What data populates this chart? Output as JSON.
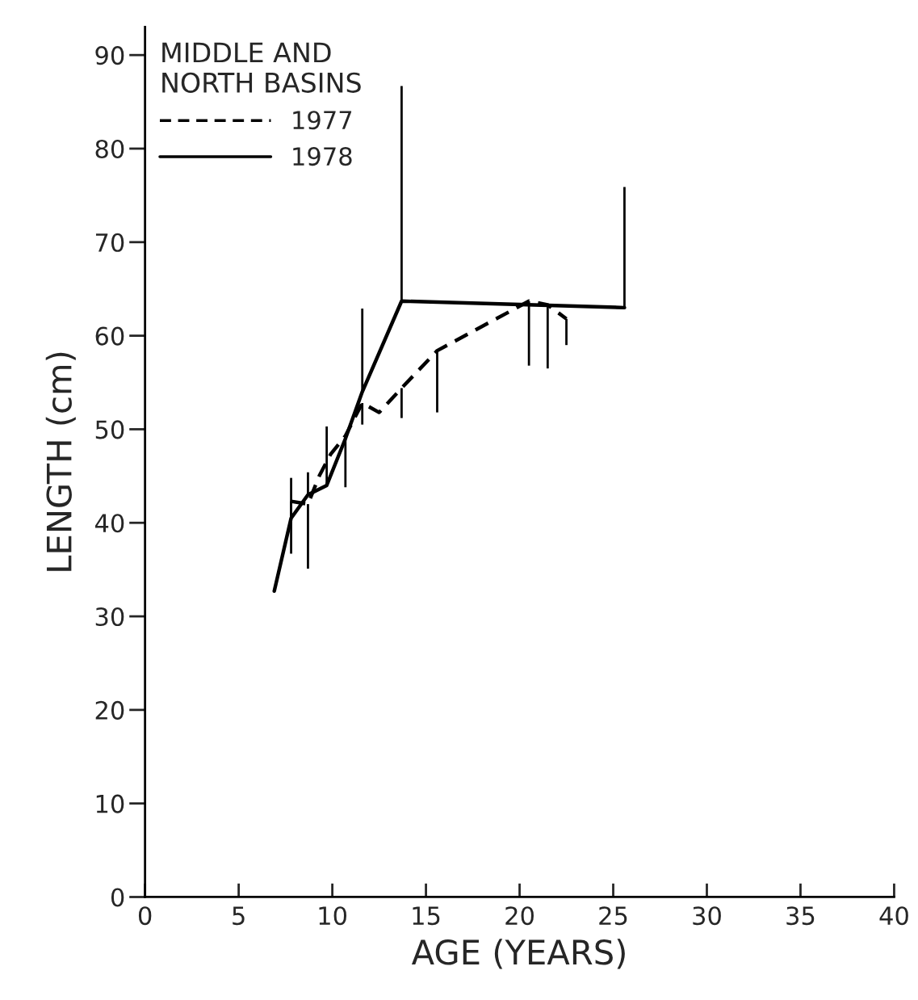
{
  "chart_data": {
    "type": "line",
    "xlabel": "AGE (YEARS)",
    "ylabel": "LENGTH (cm)",
    "legend_title": "MIDDLE AND\nNORTH BASINS",
    "legend": "top left",
    "grid": false,
    "marker": "none",
    "xlim": [
      0,
      40
    ],
    "xticks": [
      0,
      5,
      10,
      15,
      20,
      25,
      30,
      35,
      40
    ],
    "ylim": [
      0,
      93
    ],
    "yticks": [
      0,
      10,
      20,
      30,
      40,
      50,
      60,
      70,
      80,
      90
    ],
    "series": [
      {
        "name": "1977",
        "color": "#000000",
        "line_style": "dashed",
        "x": [
          7.8,
          8.7,
          9.3,
          9.9,
          10.7,
          11.6,
          12.5,
          13.7,
          15.6,
          20.5,
          21.5,
          22.5
        ],
        "values": [
          42.3,
          42,
          45,
          47.3,
          49.3,
          52.8,
          51.8,
          54.4,
          58.4,
          63.7,
          63.3,
          61.8
        ],
        "errors": [
          [
            36.7,
            42.3
          ],
          [
            35.1,
            42
          ],
          null,
          null,
          null,
          [
            50.5,
            52.8
          ],
          null,
          [
            51.2,
            54.4
          ],
          [
            51.8,
            58.4
          ],
          [
            56.8,
            63.7
          ],
          [
            56.5,
            63.3
          ],
          [
            59,
            61.8
          ]
        ]
      },
      {
        "name": "1978",
        "color": "#000000",
        "line_style": "solid",
        "x": [
          6.9,
          7.8,
          8.7,
          9.7,
          10.7,
          11.6,
          13.7,
          25.6
        ],
        "values": [
          32.7,
          40.5,
          43,
          44,
          49,
          54,
          63.7,
          63
        ],
        "errors": [
          null,
          [
            40.5,
            44.8
          ],
          [
            43,
            45.4
          ],
          [
            44,
            50.3
          ],
          [
            43.8,
            49
          ],
          [
            54,
            62.9
          ],
          [
            63.7,
            86.7
          ],
          [
            63,
            75.9
          ]
        ]
      }
    ]
  }
}
